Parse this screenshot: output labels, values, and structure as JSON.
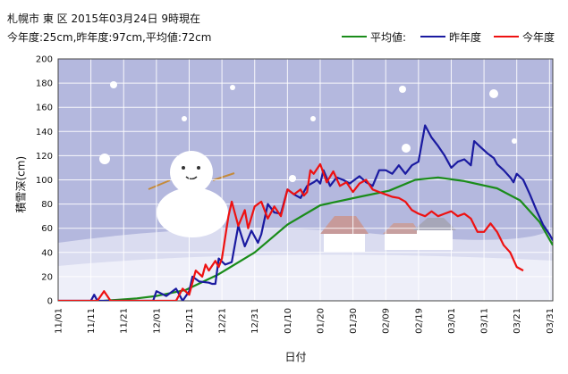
{
  "header": {
    "title_line1": "札幌市 東 区 2015年03月24日 9時現在",
    "title_line2": "今年度:25cm,昨年度:97cm,平均値:72cm"
  },
  "legend": {
    "items": [
      {
        "label": "平均値:",
        "color": "#1a8c1a"
      },
      {
        "label": "昨年度",
        "color": "#1a1aa0"
      },
      {
        "label": "今年度",
        "color": "#ee1111"
      }
    ]
  },
  "chart_data": {
    "type": "line",
    "title": "札幌市 東 区 2015年03月24日 9時現在",
    "subtitle": "今年度:25cm,昨年度:97cm,平均値:72cm",
    "xlabel": "日付",
    "ylabel": "積雪深(cm)",
    "ylim": [
      0,
      200
    ],
    "yticks": [
      0,
      20,
      40,
      60,
      80,
      100,
      120,
      140,
      160,
      180,
      200
    ],
    "xlim": [
      "11/01",
      "04/01"
    ],
    "xtick_labels": [
      "11/01",
      "11/11",
      "11/21",
      "12/01",
      "12/11",
      "12/21",
      "12/31",
      "01/10",
      "01/20",
      "01/30",
      "02/09",
      "02/19",
      "03/01",
      "03/11",
      "03/21",
      "03/31"
    ],
    "grid": true,
    "legend_position": "top-right",
    "series": [
      {
        "name": "平均値:",
        "color": "#1a8c1a",
        "points": [
          [
            "11/15",
            0
          ],
          [
            "11/25",
            2
          ],
          [
            "12/01",
            4
          ],
          [
            "12/10",
            9
          ],
          [
            "12/20",
            22
          ],
          [
            "12/31",
            40
          ],
          [
            "01/10",
            63
          ],
          [
            "01/20",
            79
          ],
          [
            "02/01",
            86
          ],
          [
            "02/10",
            91
          ],
          [
            "02/18",
            100
          ],
          [
            "02/25",
            102
          ],
          [
            "03/05",
            99
          ],
          [
            "03/15",
            93
          ],
          [
            "03/22",
            83
          ],
          [
            "03/28",
            65
          ],
          [
            "04/01",
            46
          ]
        ]
      },
      {
        "name": "昨年度",
        "color": "#1a1aa0",
        "points": [
          [
            "11/01",
            0
          ],
          [
            "11/11",
            0
          ],
          [
            "11/12",
            5
          ],
          [
            "11/13",
            0
          ],
          [
            "11/30",
            0
          ],
          [
            "12/01",
            8
          ],
          [
            "12/04",
            4
          ],
          [
            "12/07",
            10
          ],
          [
            "12/09",
            0
          ],
          [
            "12/11",
            8
          ],
          [
            "12/12",
            20
          ],
          [
            "12/14",
            16
          ],
          [
            "12/17",
            15
          ],
          [
            "12/18",
            14
          ],
          [
            "12/19",
            14
          ],
          [
            "12/20",
            35
          ],
          [
            "12/22",
            30
          ],
          [
            "12/24",
            32
          ],
          [
            "12/26",
            62
          ],
          [
            "12/28",
            45
          ],
          [
            "12/30",
            58
          ],
          [
            "01/01",
            48
          ],
          [
            "01/02",
            55
          ],
          [
            "01/04",
            80
          ],
          [
            "01/06",
            73
          ],
          [
            "01/08",
            72
          ],
          [
            "01/10",
            92
          ],
          [
            "01/12",
            88
          ],
          [
            "01/14",
            85
          ],
          [
            "01/16",
            95
          ],
          [
            "01/18",
            98
          ],
          [
            "01/19",
            100
          ],
          [
            "01/20",
            97
          ],
          [
            "01/21",
            108
          ],
          [
            "01/23",
            95
          ],
          [
            "01/25",
            102
          ],
          [
            "01/27",
            100
          ],
          [
            "01/29",
            97
          ],
          [
            "02/01",
            103
          ],
          [
            "02/03",
            98
          ],
          [
            "02/05",
            95
          ],
          [
            "02/07",
            108
          ],
          [
            "02/09",
            108
          ],
          [
            "02/11",
            105
          ],
          [
            "02/13",
            112
          ],
          [
            "02/15",
            105
          ],
          [
            "02/17",
            112
          ],
          [
            "02/19",
            115
          ],
          [
            "02/21",
            145
          ],
          [
            "02/23",
            135
          ],
          [
            "02/25",
            128
          ],
          [
            "02/27",
            120
          ],
          [
            "02/28",
            115
          ],
          [
            "03/01",
            110
          ],
          [
            "03/03",
            115
          ],
          [
            "03/05",
            117
          ],
          [
            "03/07",
            112
          ],
          [
            "03/08",
            132
          ],
          [
            "03/10",
            127
          ],
          [
            "03/12",
            122
          ],
          [
            "03/14",
            118
          ],
          [
            "03/15",
            113
          ],
          [
            "03/17",
            108
          ],
          [
            "03/19",
            102
          ],
          [
            "03/20",
            98
          ],
          [
            "03/21",
            105
          ],
          [
            "03/23",
            100
          ],
          [
            "03/25",
            88
          ],
          [
            "03/27",
            75
          ],
          [
            "03/29",
            63
          ],
          [
            "03/31",
            55
          ],
          [
            "04/01",
            50
          ]
        ]
      },
      {
        "name": "今年度",
        "color": "#ee1111",
        "points": [
          [
            "11/01",
            0
          ],
          [
            "11/13",
            0
          ],
          [
            "11/15",
            8
          ],
          [
            "11/17",
            0
          ],
          [
            "12/01",
            0
          ],
          [
            "12/07",
            0
          ],
          [
            "12/09",
            10
          ],
          [
            "12/11",
            5
          ],
          [
            "12/13",
            25
          ],
          [
            "12/15",
            20
          ],
          [
            "12/16",
            30
          ],
          [
            "12/17",
            25
          ],
          [
            "12/19",
            33
          ],
          [
            "12/20",
            28
          ],
          [
            "12/21",
            35
          ],
          [
            "12/23",
            70
          ],
          [
            "12/24",
            82
          ],
          [
            "12/26",
            62
          ],
          [
            "12/28",
            75
          ],
          [
            "12/29",
            60
          ],
          [
            "12/31",
            78
          ],
          [
            "01/02",
            82
          ],
          [
            "01/04",
            68
          ],
          [
            "01/06",
            78
          ],
          [
            "01/08",
            70
          ],
          [
            "01/10",
            92
          ],
          [
            "01/12",
            88
          ],
          [
            "01/14",
            92
          ],
          [
            "01/15",
            87
          ],
          [
            "01/16",
            90
          ],
          [
            "01/17",
            108
          ],
          [
            "01/18",
            105
          ],
          [
            "01/20",
            113
          ],
          [
            "01/22",
            98
          ],
          [
            "01/24",
            107
          ],
          [
            "01/26",
            95
          ],
          [
            "01/28",
            98
          ],
          [
            "01/30",
            90
          ],
          [
            "02/01",
            97
          ],
          [
            "02/03",
            100
          ],
          [
            "02/05",
            92
          ],
          [
            "02/07",
            90
          ],
          [
            "02/09",
            88
          ],
          [
            "02/11",
            86
          ],
          [
            "02/13",
            85
          ],
          [
            "02/15",
            82
          ],
          [
            "02/17",
            75
          ],
          [
            "02/19",
            72
          ],
          [
            "02/21",
            70
          ],
          [
            "02/23",
            74
          ],
          [
            "02/25",
            70
          ],
          [
            "02/27",
            72
          ],
          [
            "03/01",
            74
          ],
          [
            "03/03",
            70
          ],
          [
            "03/05",
            72
          ],
          [
            "03/07",
            68
          ],
          [
            "03/09",
            57
          ],
          [
            "03/11",
            57
          ],
          [
            "03/13",
            64
          ],
          [
            "03/15",
            57
          ],
          [
            "03/17",
            46
          ],
          [
            "03/19",
            40
          ],
          [
            "03/21",
            28
          ],
          [
            "03/23",
            25
          ]
        ]
      }
    ]
  }
}
